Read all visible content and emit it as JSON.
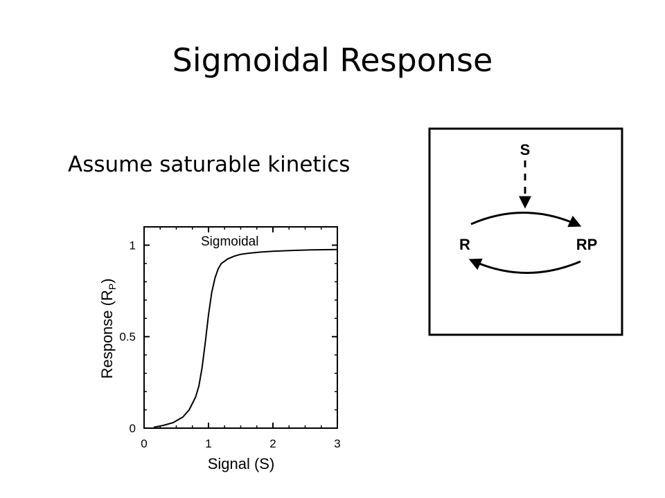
{
  "slide": {
    "title": "Sigmoidal Response",
    "subtitle": "Assume saturable kinetics"
  },
  "chart_data": {
    "type": "line",
    "xlabel": "Signal (S)",
    "ylabel": "Response (R",
    "ylabel_subscript": "P",
    "ylabel_close": ")",
    "xlim": [
      0,
      3
    ],
    "ylim": [
      0,
      1.1
    ],
    "xticks": [
      0,
      1,
      2,
      3
    ],
    "xtick_labels": [
      "0",
      "1",
      "2",
      "3"
    ],
    "yticks": [
      0,
      0.5,
      1
    ],
    "ytick_labels": [
      "0",
      "0.5",
      "1"
    ],
    "annotation": "Sigmoidal",
    "grid": false,
    "series": [
      {
        "x": [
          0.15,
          0.3,
          0.45,
          0.6,
          0.7,
          0.8,
          0.85,
          0.9,
          0.95,
          1.0,
          1.05,
          1.1,
          1.15,
          1.2,
          1.3,
          1.4,
          1.5,
          1.6,
          1.8,
          2.0,
          2.3,
          2.6,
          3.0
        ],
        "y": [
          0.005,
          0.015,
          0.03,
          0.06,
          0.1,
          0.17,
          0.23,
          0.33,
          0.47,
          0.62,
          0.74,
          0.82,
          0.87,
          0.9,
          0.925,
          0.94,
          0.95,
          0.955,
          0.962,
          0.967,
          0.971,
          0.974,
          0.976
        ]
      }
    ]
  },
  "diagram": {
    "node_s": "S",
    "node_r": "R",
    "node_rp": "RP"
  }
}
